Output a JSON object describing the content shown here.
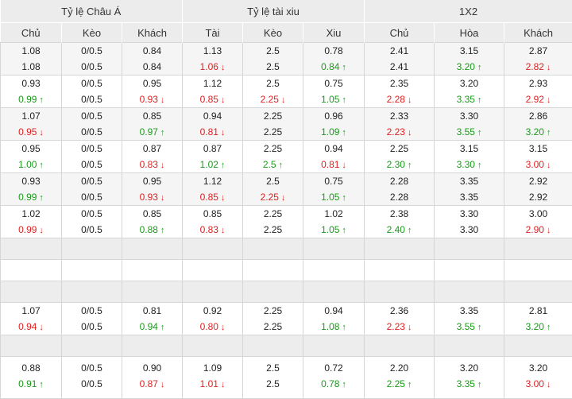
{
  "header": {
    "groups": [
      "Tỷ lệ Châu Á",
      "Tỷ lệ tài xiu",
      "1X2"
    ],
    "columns": [
      "Chủ",
      "Kèo",
      "Khách",
      "Tài",
      "Kèo",
      "Xiu",
      "Chủ",
      "Hòa",
      "Khách"
    ]
  },
  "rows": [
    {
      "type": "data",
      "alt": true,
      "cells": [
        [
          {
            "v": "1.08"
          },
          {
            "v": "1.08"
          }
        ],
        [
          {
            "v": "0/0.5"
          },
          {
            "v": "0/0.5"
          }
        ],
        [
          {
            "v": "0.84"
          },
          {
            "v": "0.84"
          }
        ],
        [
          {
            "v": "1.13"
          },
          {
            "v": "1.06",
            "t": "down"
          }
        ],
        [
          {
            "v": "2.5"
          },
          {
            "v": "2.5"
          }
        ],
        [
          {
            "v": "0.78"
          },
          {
            "v": "0.84",
            "t": "up"
          }
        ],
        [
          {
            "v": "2.41"
          },
          {
            "v": "2.41"
          }
        ],
        [
          {
            "v": "3.15"
          },
          {
            "v": "3.20",
            "t": "up"
          }
        ],
        [
          {
            "v": "2.87"
          },
          {
            "v": "2.82",
            "t": "down"
          }
        ]
      ]
    },
    {
      "type": "data",
      "alt": false,
      "cells": [
        [
          {
            "v": "0.93"
          },
          {
            "v": "0.99",
            "t": "up"
          }
        ],
        [
          {
            "v": "0/0.5"
          },
          {
            "v": "0/0.5"
          }
        ],
        [
          {
            "v": "0.95"
          },
          {
            "v": "0.93",
            "t": "down"
          }
        ],
        [
          {
            "v": "1.12"
          },
          {
            "v": "0.85",
            "t": "down"
          }
        ],
        [
          {
            "v": "2.5"
          },
          {
            "v": "2.25",
            "t": "down"
          }
        ],
        [
          {
            "v": "0.75"
          },
          {
            "v": "1.05",
            "t": "up"
          }
        ],
        [
          {
            "v": "2.35"
          },
          {
            "v": "2.28",
            "t": "down"
          }
        ],
        [
          {
            "v": "3.20"
          },
          {
            "v": "3.35",
            "t": "up"
          }
        ],
        [
          {
            "v": "2.93"
          },
          {
            "v": "2.92",
            "t": "down"
          }
        ]
      ]
    },
    {
      "type": "data",
      "alt": true,
      "cells": [
        [
          {
            "v": "1.07"
          },
          {
            "v": "0.95",
            "t": "down"
          }
        ],
        [
          {
            "v": "0/0.5"
          },
          {
            "v": "0/0.5"
          }
        ],
        [
          {
            "v": "0.85"
          },
          {
            "v": "0.97",
            "t": "up"
          }
        ],
        [
          {
            "v": "0.94"
          },
          {
            "v": "0.81",
            "t": "down"
          }
        ],
        [
          {
            "v": "2.25"
          },
          {
            "v": "2.25"
          }
        ],
        [
          {
            "v": "0.96"
          },
          {
            "v": "1.09",
            "t": "up"
          }
        ],
        [
          {
            "v": "2.33"
          },
          {
            "v": "2.23",
            "t": "down"
          }
        ],
        [
          {
            "v": "3.30"
          },
          {
            "v": "3.55",
            "t": "up"
          }
        ],
        [
          {
            "v": "2.86"
          },
          {
            "v": "3.20",
            "t": "up"
          }
        ]
      ]
    },
    {
      "type": "data",
      "alt": false,
      "cells": [
        [
          {
            "v": "0.95"
          },
          {
            "v": "1.00",
            "t": "up"
          }
        ],
        [
          {
            "v": "0/0.5"
          },
          {
            "v": "0/0.5"
          }
        ],
        [
          {
            "v": "0.87"
          },
          {
            "v": "0.83",
            "t": "down"
          }
        ],
        [
          {
            "v": "0.87"
          },
          {
            "v": "1.02",
            "t": "up"
          }
        ],
        [
          {
            "v": "2.25"
          },
          {
            "v": "2.5",
            "t": "up"
          }
        ],
        [
          {
            "v": "0.94"
          },
          {
            "v": "0.81",
            "t": "down"
          }
        ],
        [
          {
            "v": "2.25"
          },
          {
            "v": "2.30",
            "t": "up"
          }
        ],
        [
          {
            "v": "3.15"
          },
          {
            "v": "3.30",
            "t": "up"
          }
        ],
        [
          {
            "v": "3.15"
          },
          {
            "v": "3.00",
            "t": "down"
          }
        ]
      ]
    },
    {
      "type": "data",
      "alt": true,
      "cells": [
        [
          {
            "v": "0.93"
          },
          {
            "v": "0.99",
            "t": "up"
          }
        ],
        [
          {
            "v": "0/0.5"
          },
          {
            "v": "0/0.5"
          }
        ],
        [
          {
            "v": "0.95"
          },
          {
            "v": "0.93",
            "t": "down"
          }
        ],
        [
          {
            "v": "1.12"
          },
          {
            "v": "0.85",
            "t": "down"
          }
        ],
        [
          {
            "v": "2.5"
          },
          {
            "v": "2.25",
            "t": "down"
          }
        ],
        [
          {
            "v": "0.75"
          },
          {
            "v": "1.05",
            "t": "up"
          }
        ],
        [
          {
            "v": "2.28"
          },
          {
            "v": "2.28"
          }
        ],
        [
          {
            "v": "3.35"
          },
          {
            "v": "3.35"
          }
        ],
        [
          {
            "v": "2.92"
          },
          {
            "v": "2.92"
          }
        ]
      ]
    },
    {
      "type": "data",
      "alt": false,
      "cells": [
        [
          {
            "v": "1.02"
          },
          {
            "v": "0.99",
            "t": "down"
          }
        ],
        [
          {
            "v": "0/0.5"
          },
          {
            "v": "0/0.5"
          }
        ],
        [
          {
            "v": "0.85"
          },
          {
            "v": "0.88",
            "t": "up"
          }
        ],
        [
          {
            "v": "0.85"
          },
          {
            "v": "0.83",
            "t": "down"
          }
        ],
        [
          {
            "v": "2.25"
          },
          {
            "v": "2.25"
          }
        ],
        [
          {
            "v": "1.02"
          },
          {
            "v": "1.05",
            "t": "up"
          }
        ],
        [
          {
            "v": "2.38"
          },
          {
            "v": "2.40",
            "t": "up"
          }
        ],
        [
          {
            "v": "3.30"
          },
          {
            "v": "3.30"
          }
        ],
        [
          {
            "v": "3.00"
          },
          {
            "v": "2.90",
            "t": "down"
          }
        ]
      ]
    },
    {
      "type": "blank",
      "g": true
    },
    {
      "type": "blank",
      "g": false
    },
    {
      "type": "blank",
      "g": true
    },
    {
      "type": "data",
      "alt": false,
      "cells": [
        [
          {
            "v": "1.07"
          },
          {
            "v": "0.94",
            "t": "down"
          }
        ],
        [
          {
            "v": "0/0.5"
          },
          {
            "v": "0/0.5"
          }
        ],
        [
          {
            "v": "0.81"
          },
          {
            "v": "0.94",
            "t": "up"
          }
        ],
        [
          {
            "v": "0.92"
          },
          {
            "v": "0.80",
            "t": "down"
          }
        ],
        [
          {
            "v": "2.25"
          },
          {
            "v": "2.25"
          }
        ],
        [
          {
            "v": "0.94"
          },
          {
            "v": "1.08",
            "t": "up"
          }
        ],
        [
          {
            "v": "2.36"
          },
          {
            "v": "2.23",
            "t": "down"
          }
        ],
        [
          {
            "v": "3.35"
          },
          {
            "v": "3.55",
            "t": "up"
          }
        ],
        [
          {
            "v": "2.81"
          },
          {
            "v": "3.20",
            "t": "up"
          }
        ]
      ]
    },
    {
      "type": "blank",
      "g": true
    },
    {
      "type": "data",
      "alt": false,
      "last": true,
      "cells": [
        [
          {
            "v": "0.88"
          },
          {
            "v": "0.91",
            "t": "up"
          }
        ],
        [
          {
            "v": "0/0.5"
          },
          {
            "v": "0/0.5"
          }
        ],
        [
          {
            "v": "0.90"
          },
          {
            "v": "0.87",
            "t": "down"
          }
        ],
        [
          {
            "v": "1.09"
          },
          {
            "v": "1.01",
            "t": "down"
          }
        ],
        [
          {
            "v": "2.5"
          },
          {
            "v": "2.5"
          }
        ],
        [
          {
            "v": "0.72"
          },
          {
            "v": "0.78",
            "t": "up"
          }
        ],
        [
          {
            "v": "2.20"
          },
          {
            "v": "2.25",
            "t": "up"
          }
        ],
        [
          {
            "v": "3.20"
          },
          {
            "v": "3.35",
            "t": "up"
          }
        ],
        [
          {
            "v": "3.20"
          },
          {
            "v": "3.00",
            "t": "down"
          }
        ]
      ]
    }
  ]
}
